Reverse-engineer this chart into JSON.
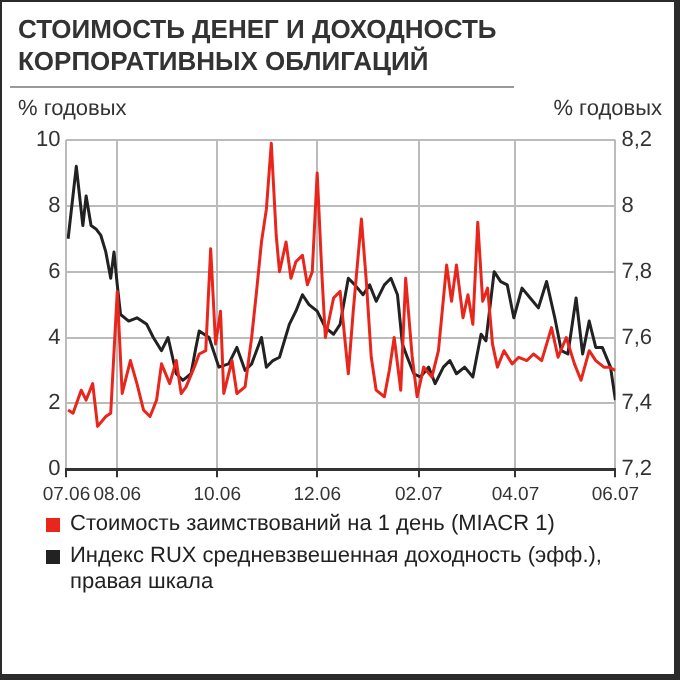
{
  "chart_data": {
    "type": "line",
    "title": "СТОИМОСТЬ ДЕНЕГ И ДОХОДНОСТЬ КОРПОРАТИВНЫХ ОБЛИГАЦИЙ",
    "ylabel": "% годовых",
    "y2label": "% годовых",
    "xlim": [
      "2006-07",
      "2007-06"
    ],
    "xticks": [
      {
        "value": "2006-07",
        "label": "07.06"
      },
      {
        "value": "2006-08",
        "label": "08.06"
      },
      {
        "value": "2006-10",
        "label": "10.06"
      },
      {
        "value": "2006-12",
        "label": "12.06"
      },
      {
        "value": "2007-02",
        "label": "02.07"
      },
      {
        "value": "2007-04",
        "label": "04.07"
      },
      {
        "value": "2007-06",
        "label": "06.07"
      }
    ],
    "ylim": [
      0,
      10
    ],
    "yticks": [
      0,
      2,
      4,
      6,
      8,
      10
    ],
    "y2lim": [
      7.2,
      8.2
    ],
    "y2ticks": [
      {
        "value": 7.2,
        "label": "7,2"
      },
      {
        "value": 7.4,
        "label": "7,4"
      },
      {
        "value": 7.6,
        "label": "7,6"
      },
      {
        "value": 7.8,
        "label": "7,8"
      },
      8,
      {
        "value": 8.2,
        "label": "8,2"
      }
    ],
    "grid": true,
    "legend": "bottom",
    "series": [
      {
        "name": "Стоимость заимствований на 1 день (MIACR 1)",
        "color": "#e8261c",
        "x": [
          "2006-07-02",
          "2006-07-05",
          "2006-07-10",
          "2006-07-13",
          "2006-07-17",
          "2006-07-20",
          "2006-07-25",
          "2006-07-28",
          "2006-08-01",
          "2006-08-04",
          "2006-08-09",
          "2006-08-13",
          "2006-08-17",
          "2006-08-21",
          "2006-08-25",
          "2006-08-28",
          "2006-09-02",
          "2006-09-06",
          "2006-09-09",
          "2006-09-12",
          "2006-09-17",
          "2006-09-20",
          "2006-09-24",
          "2006-09-27",
          "2006-09-30",
          "2006-10-03",
          "2006-10-05",
          "2006-10-10",
          "2006-10-13",
          "2006-10-18",
          "2006-10-22",
          "2006-10-25",
          "2006-10-28",
          "2006-10-31",
          "2006-11-03",
          "2006-11-06",
          "2006-11-08",
          "2006-11-12",
          "2006-11-15",
          "2006-11-18",
          "2006-11-22",
          "2006-11-25",
          "2006-11-28",
          "2006-12-01",
          "2006-12-04",
          "2006-12-06",
          "2006-12-11",
          "2006-12-15",
          "2006-12-20",
          "2006-12-23",
          "2006-12-28",
          "2006-12-31",
          "2007-01-03",
          "2007-01-06",
          "2007-01-11",
          "2007-01-14",
          "2007-01-17",
          "2007-01-21",
          "2007-01-24",
          "2007-01-28",
          "2007-01-31",
          "2007-02-04",
          "2007-02-09",
          "2007-02-13",
          "2007-02-18",
          "2007-02-21",
          "2007-02-24",
          "2007-02-28",
          "2007-03-03",
          "2007-03-06",
          "2007-03-09",
          "2007-03-12",
          "2007-03-15",
          "2007-03-18",
          "2007-03-21",
          "2007-03-25",
          "2007-03-30",
          "2007-04-03",
          "2007-04-08",
          "2007-04-12",
          "2007-04-17",
          "2007-04-23",
          "2007-04-27",
          "2007-05-02",
          "2007-05-07",
          "2007-05-11",
          "2007-05-16",
          "2007-05-20",
          "2007-05-25",
          "2007-05-28",
          "2007-06-01"
        ],
        "values": [
          1.8,
          1.7,
          2.4,
          2.1,
          2.6,
          1.3,
          1.6,
          1.7,
          5.4,
          2.3,
          3.3,
          2.6,
          1.8,
          1.6,
          2.1,
          3.2,
          2.6,
          3.3,
          2.3,
          2.5,
          3.1,
          3.5,
          3.6,
          6.7,
          3.8,
          4.8,
          2.3,
          3.3,
          2.3,
          2.5,
          4.0,
          5.4,
          6.9,
          7.9,
          9.9,
          7.1,
          6.0,
          6.9,
          5.8,
          6.3,
          6.5,
          5.6,
          6.0,
          9.0,
          5.8,
          4.0,
          5.2,
          5.4,
          2.9,
          4.8,
          7.6,
          5.7,
          3.4,
          2.4,
          2.2,
          3.0,
          4.0,
          2.4,
          5.8,
          3.4,
          2.2,
          3.1,
          2.8,
          3.6,
          6.2,
          5.1,
          6.2,
          4.6,
          5.3,
          4.4,
          7.5,
          5.1,
          5.5,
          3.8,
          3.1,
          3.6,
          3.2,
          3.4,
          3.3,
          3.5,
          3.3,
          4.3,
          3.4,
          4.0,
          3.2,
          2.7,
          3.6,
          3.3,
          3.1,
          3.1,
          3.0
        ]
      },
      {
        "name": "Индекс RUX средневзвешенная доходность (эфф.), правая шкала",
        "color": "#222222",
        "axis": "y2",
        "x": [
          "2006-07-02",
          "2006-07-07",
          "2006-07-11",
          "2006-07-13",
          "2006-07-16",
          "2006-07-19",
          "2006-07-22",
          "2006-07-25",
          "2006-07-28",
          "2006-07-30",
          "2006-08-01",
          "2006-08-03",
          "2006-08-08",
          "2006-08-13",
          "2006-08-19",
          "2006-08-23",
          "2006-08-28",
          "2006-09-01",
          "2006-09-06",
          "2006-09-10",
          "2006-09-15",
          "2006-09-18",
          "2006-09-20",
          "2006-09-26",
          "2006-10-02",
          "2006-10-08",
          "2006-10-13",
          "2006-10-18",
          "2006-10-22",
          "2006-10-28",
          "2006-10-31",
          "2006-11-04",
          "2006-11-08",
          "2006-11-14",
          "2006-11-18",
          "2006-11-22",
          "2006-11-26",
          "2006-12-01",
          "2006-12-06",
          "2006-12-11",
          "2006-12-15",
          "2006-12-20",
          "2006-12-24",
          "2006-12-29",
          "2007-01-02",
          "2007-01-06",
          "2007-01-11",
          "2007-01-15",
          "2007-01-19",
          "2007-01-22",
          "2007-01-25",
          "2007-01-29",
          "2007-02-02",
          "2007-02-07",
          "2007-02-11",
          "2007-02-16",
          "2007-02-20",
          "2007-02-24",
          "2007-03-01",
          "2007-03-06",
          "2007-03-11",
          "2007-03-14",
          "2007-03-19",
          "2007-03-23",
          "2007-03-27",
          "2007-03-31",
          "2007-04-05",
          "2007-04-10",
          "2007-04-15",
          "2007-04-20",
          "2007-04-25",
          "2007-04-29",
          "2007-05-03",
          "2007-05-08",
          "2007-05-12",
          "2007-05-16",
          "2007-05-20",
          "2007-05-24",
          "2007-05-29",
          "2007-06-01"
        ],
        "values": [
          7.9,
          8.12,
          7.94,
          8.03,
          7.94,
          7.93,
          7.91,
          7.86,
          7.78,
          7.86,
          7.76,
          7.67,
          7.65,
          7.66,
          7.64,
          7.6,
          7.56,
          7.6,
          7.49,
          7.47,
          7.49,
          7.57,
          7.62,
          7.6,
          7.51,
          7.52,
          7.57,
          7.5,
          7.52,
          7.6,
          7.51,
          7.53,
          7.54,
          7.64,
          7.68,
          7.73,
          7.7,
          7.68,
          7.63,
          7.61,
          7.64,
          7.78,
          7.76,
          7.73,
          7.76,
          7.71,
          7.76,
          7.78,
          7.73,
          7.58,
          7.54,
          7.49,
          7.48,
          7.51,
          7.46,
          7.51,
          7.53,
          7.49,
          7.51,
          7.48,
          7.61,
          7.59,
          7.8,
          7.77,
          7.76,
          7.66,
          7.75,
          7.72,
          7.69,
          7.77,
          7.66,
          7.56,
          7.55,
          7.72,
          7.55,
          7.65,
          7.57,
          7.57,
          7.51,
          7.41
        ]
      }
    ]
  }
}
